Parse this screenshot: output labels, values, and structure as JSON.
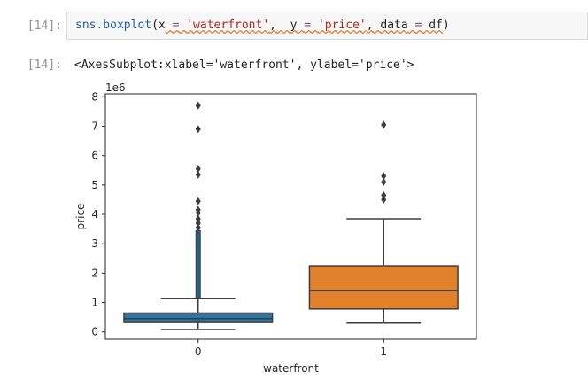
{
  "cell": {
    "input_prompt": "[14]:",
    "output_prompt": "[14]:",
    "code": {
      "fn": "sns.boxplot",
      "open": "(",
      "x_kw": "x",
      "eq": "=",
      "x_val": "'waterfront'",
      "comma": ",",
      "y_kw": "y",
      "y_val": "'price'",
      "data_kw": "data",
      "data_val": "df",
      "close": ")"
    },
    "output_text": "<AxesSubplot:xlabel='waterfront', ylabel='price'>"
  },
  "chart_data": {
    "type": "boxplot",
    "xlabel": "waterfront",
    "ylabel": "price",
    "offset_text": "1e6",
    "ylim": [
      -0.25,
      8.1
    ],
    "yticks": [
      0,
      1,
      2,
      3,
      4,
      5,
      6,
      7,
      8
    ],
    "ytick_labels": [
      "0",
      "1",
      "2",
      "3",
      "4",
      "5",
      "6",
      "7",
      "8"
    ],
    "categories": [
      "0",
      "1"
    ],
    "boxes": [
      {
        "category": "0",
        "color": "#3274a1",
        "whisker_low": 0.08,
        "q1": 0.32,
        "median": 0.45,
        "q3": 0.64,
        "whisker_high": 1.13,
        "outlier_band": [
          1.13,
          3.45
        ],
        "outliers": [
          3.55,
          3.7,
          3.85,
          4.05,
          4.15,
          4.45,
          5.35,
          5.55,
          6.9,
          7.7
        ]
      },
      {
        "category": "1",
        "color": "#e1812c",
        "whisker_low": 0.3,
        "q1": 0.78,
        "median": 1.4,
        "q3": 2.25,
        "whisker_high": 3.85,
        "outlier_band": null,
        "outliers": [
          4.5,
          4.65,
          5.1,
          5.3,
          7.05
        ]
      }
    ]
  }
}
